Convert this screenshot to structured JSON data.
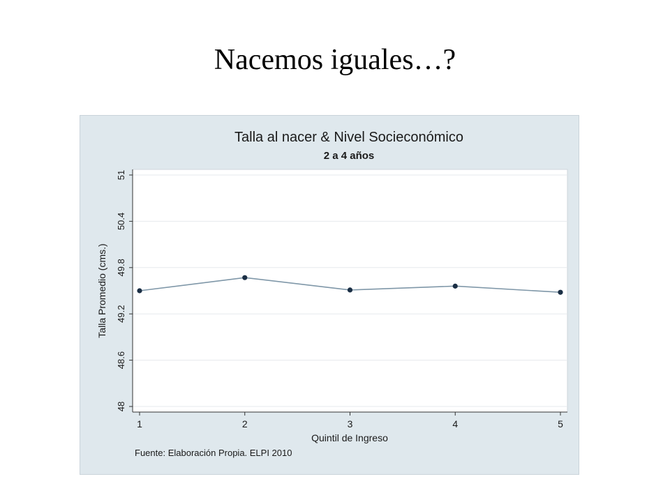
{
  "slide": {
    "title": "Nacemos iguales…?"
  },
  "chart_data": {
    "type": "line",
    "title": "Talla al nacer & Nivel Socieconómico",
    "subtitle": "2 a 4 años",
    "xlabel": "Quintil de Ingreso",
    "ylabel": "Talla Promedio (cms.)",
    "source_note": "Fuente: Elaboración Propia. ELPI 2010",
    "x": [
      1,
      2,
      3,
      4,
      5
    ],
    "x_tick_labels": [
      "1",
      "2",
      "3",
      "4",
      "5"
    ],
    "y_ticks": [
      48,
      48.6,
      49.2,
      49.8,
      50.4,
      51
    ],
    "y_tick_labels": [
      "48",
      "48.6",
      "49.2",
      "49.8",
      "50.4",
      "51"
    ],
    "ylim": [
      48,
      51
    ],
    "xlim": [
      1,
      5
    ],
    "grid": true,
    "series": [
      {
        "values": [
          49.5,
          49.67,
          49.51,
          49.56,
          49.48
        ]
      }
    ],
    "colors": {
      "plot_background": "#dfe8ed",
      "panel": "#ffffff",
      "gridline": "#e6eaed",
      "line": "#7f97a8",
      "marker": "#1b2f45",
      "title": "#1c3a53"
    }
  }
}
